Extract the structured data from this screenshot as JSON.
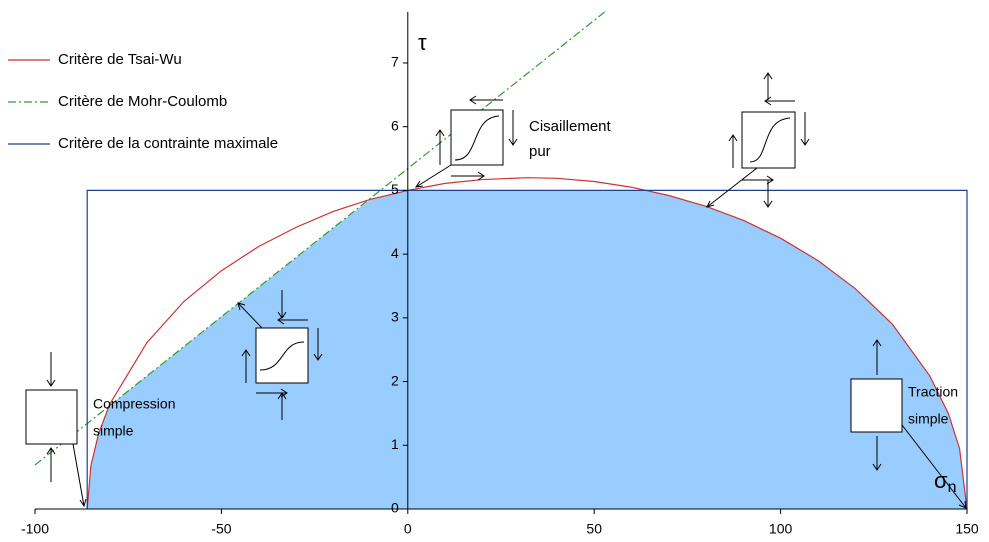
{
  "chart_data": {
    "type": "line",
    "y_label": "τ",
    "x_label": {
      "symbol": "σ",
      "subscript": "n"
    },
    "xlim": [
      -100,
      150
    ],
    "ylim": [
      0,
      7.8
    ],
    "xticks": [
      -100,
      -50,
      0,
      50,
      100,
      150
    ],
    "yticks": [
      0,
      1,
      2,
      3,
      4,
      5,
      6,
      7
    ],
    "area": {
      "color": "#99ccff",
      "x": [
        -86,
        -85,
        -83,
        -80,
        -60,
        -40,
        -20,
        -10,
        0,
        63,
        70,
        80,
        90,
        100,
        110,
        120,
        130,
        140,
        145,
        148,
        150
      ],
      "values": [
        0,
        0.68,
        1.17,
        1.62,
        2.55,
        3.48,
        4.41,
        4.86,
        5,
        5,
        4.92,
        4.75,
        4.53,
        4.25,
        3.9,
        3.46,
        2.9,
        2.09,
        1.5,
        0.95,
        0
      ]
    },
    "series": [
      {
        "name": "Critère de Tsai-Wu",
        "color": "#cc3333",
        "dash": "none",
        "x": [
          -86,
          -85,
          -83,
          -80,
          -70,
          -60,
          -50,
          -40,
          -30,
          -20,
          -10,
          0,
          10,
          20,
          32,
          40,
          50,
          60,
          70,
          80,
          90,
          100,
          110,
          120,
          130,
          140,
          145,
          148,
          150
        ],
        "values": [
          0,
          0.68,
          1.17,
          1.64,
          2.61,
          3.26,
          3.74,
          4.12,
          4.42,
          4.67,
          4.86,
          5,
          5.11,
          5.17,
          5.2,
          5.19,
          5.14,
          5.05,
          4.92,
          4.75,
          4.53,
          4.25,
          3.9,
          3.46,
          2.9,
          2.09,
          1.5,
          0.95,
          0
        ]
      },
      {
        "name": "Critère de Mohr-Coulomb",
        "color": "#339933",
        "dash": "8 3 2 3",
        "x": [
          -100,
          52.8
        ],
        "values": [
          0.69,
          7.8
        ]
      },
      {
        "name": "Critère de la contrainte maximale",
        "color": "#1f3f8f",
        "dash": "none",
        "x": [
          -86,
          -86,
          150,
          150
        ],
        "values": [
          0,
          5,
          5,
          0
        ]
      }
    ],
    "annotations": [
      {
        "lines": [
          "Compression",
          "simple"
        ]
      },
      {
        "lines": [
          "Cisaillement",
          "pur"
        ]
      },
      {
        "lines": [
          "Traction",
          "simple"
        ]
      }
    ]
  }
}
